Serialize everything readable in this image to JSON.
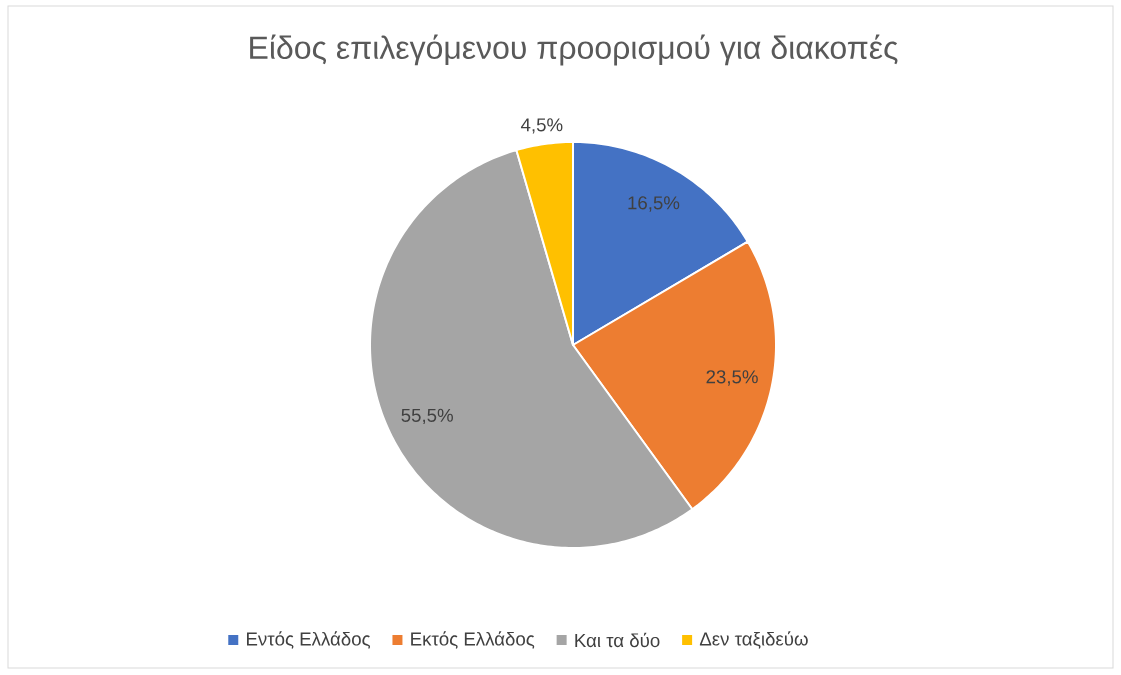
{
  "chart_data": {
    "type": "pie",
    "title": "Είδος επιλεγόμενου προορισμού για διακοπές",
    "categories": [
      "Εντός Ελλάδος",
      "Εκτός Ελλάδος",
      "Και τα δύο",
      "Δεν ταξιδεύω"
    ],
    "values": [
      16.5,
      23.5,
      55.5,
      4.5
    ],
    "colors": [
      "#4472c4",
      "#ed7d31",
      "#a5a5a5",
      "#ffc000"
    ],
    "value_labels": [
      "16,5%",
      "23,5%",
      "55,5%",
      "4,5%"
    ],
    "legend": "bottom"
  }
}
